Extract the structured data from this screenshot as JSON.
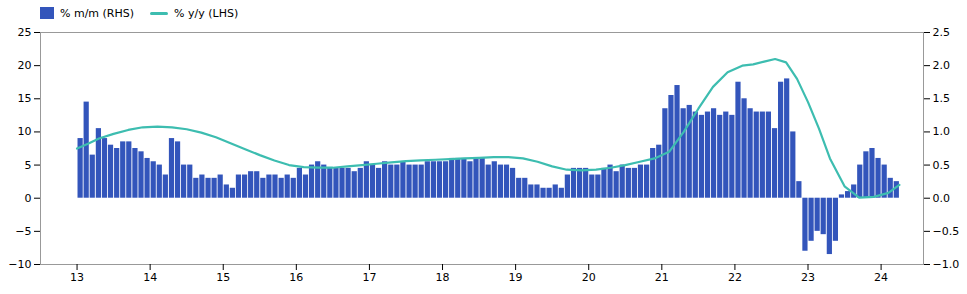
{
  "chart_data": {
    "type": "bar",
    "legend": "upper left",
    "grid": false,
    "xlim": [
      12.5,
      24.58
    ],
    "xticks": [
      13,
      14,
      15,
      16,
      17,
      18,
      19,
      20,
      21,
      22,
      23,
      24
    ],
    "ylim": [
      -10,
      25
    ],
    "yticks": [
      -10,
      -5,
      0,
      5,
      10,
      15,
      20,
      25
    ],
    "y2lim": [
      -1.0,
      2.5
    ],
    "y2ticks": [
      {
        "value": -1.0,
        "label": "−1.0"
      },
      {
        "value": -0.5,
        "label": "−0.5"
      },
      {
        "value": 0.0,
        "label": "0.0"
      },
      {
        "value": 0.5,
        "label": "0.5"
      },
      {
        "value": 1.0,
        "label": "1.0"
      },
      {
        "value": 1.5,
        "label": "1.5"
      },
      {
        "value": 2.0,
        "label": "2.0"
      },
      {
        "value": 2.5,
        "label": "2.5"
      }
    ],
    "series": [
      {
        "name": "% m/m (RHS)",
        "type": "bar",
        "color": "#3355bb",
        "x": [
          13.042,
          13.125,
          13.208,
          13.292,
          13.375,
          13.458,
          13.542,
          13.625,
          13.708,
          13.792,
          13.875,
          13.958,
          14.042,
          14.125,
          14.208,
          14.292,
          14.375,
          14.458,
          14.542,
          14.625,
          14.708,
          14.792,
          14.875,
          14.958,
          15.042,
          15.125,
          15.208,
          15.292,
          15.375,
          15.458,
          15.542,
          15.625,
          15.708,
          15.792,
          15.875,
          15.958,
          16.042,
          16.125,
          16.208,
          16.292,
          16.375,
          16.458,
          16.542,
          16.625,
          16.708,
          16.792,
          16.875,
          16.958,
          17.042,
          17.125,
          17.208,
          17.292,
          17.375,
          17.458,
          17.542,
          17.625,
          17.708,
          17.792,
          17.875,
          17.958,
          18.042,
          18.125,
          18.208,
          18.292,
          18.375,
          18.458,
          18.542,
          18.625,
          18.708,
          18.792,
          18.875,
          18.958,
          19.042,
          19.125,
          19.208,
          19.292,
          19.375,
          19.458,
          19.542,
          19.625,
          19.708,
          19.792,
          19.875,
          19.958,
          20.042,
          20.125,
          20.208,
          20.292,
          20.375,
          20.458,
          20.542,
          20.625,
          20.708,
          20.792,
          20.875,
          20.958,
          21.042,
          21.125,
          21.208,
          21.292,
          21.375,
          21.458,
          21.542,
          21.625,
          21.708,
          21.792,
          21.875,
          21.958,
          22.042,
          22.125,
          22.208,
          22.292,
          22.375,
          22.458,
          22.542,
          22.625,
          22.708,
          22.792,
          22.875,
          22.958,
          23.042,
          23.125,
          23.208,
          23.292,
          23.375,
          23.458,
          23.542,
          23.625,
          23.708,
          23.792,
          23.875,
          23.958,
          24.042,
          24.125,
          24.208
        ],
        "values": [
          9.0,
          14.5,
          6.5,
          10.5,
          9.0,
          8.0,
          7.5,
          8.5,
          8.5,
          7.5,
          7.0,
          6.0,
          5.5,
          5.0,
          3.5,
          9.0,
          8.5,
          5.0,
          5.0,
          3.0,
          3.5,
          3.0,
          3.0,
          3.5,
          2.0,
          1.5,
          3.5,
          3.5,
          4.0,
          4.0,
          3.0,
          3.5,
          3.5,
          3.0,
          3.5,
          3.0,
          4.5,
          3.5,
          5.0,
          5.5,
          5.0,
          4.5,
          4.5,
          4.5,
          4.5,
          4.0,
          4.5,
          5.5,
          5.0,
          4.5,
          5.5,
          5.0,
          5.0,
          5.5,
          5.0,
          5.0,
          5.0,
          5.5,
          5.5,
          5.5,
          5.5,
          6.0,
          6.0,
          6.0,
          5.5,
          6.0,
          6.0,
          5.0,
          5.5,
          5.0,
          5.0,
          4.5,
          3.0,
          3.0,
          2.0,
          2.0,
          1.5,
          1.5,
          2.0,
          1.5,
          3.5,
          4.5,
          4.5,
          4.5,
          3.5,
          3.5,
          4.5,
          5.0,
          4.0,
          5.0,
          4.5,
          4.5,
          5.0,
          5.0,
          7.5,
          8.0,
          13.5,
          15.5,
          17.0,
          13.5,
          14.0,
          13.0,
          12.5,
          13.0,
          13.5,
          12.5,
          13.0,
          12.5,
          17.5,
          15.0,
          13.5,
          13.0,
          13.0,
          13.0,
          10.5,
          17.5,
          18.0,
          10.0,
          2.5,
          -8.0,
          -6.5,
          -5.0,
          -5.5,
          -8.5,
          -6.5,
          0.5,
          1.0,
          2.0,
          5.0,
          7.0,
          7.5,
          6.0,
          5.0,
          3.0,
          2.5
        ]
      },
      {
        "name": "% y/y (LHS)",
        "type": "line",
        "color": "#3dbdb0",
        "axis": "y2",
        "x": [
          13.0,
          13.15,
          13.3,
          13.5,
          13.7,
          13.9,
          14.1,
          14.3,
          14.5,
          14.7,
          14.9,
          15.1,
          15.3,
          15.5,
          15.7,
          15.9,
          16.1,
          16.3,
          16.5,
          16.7,
          16.9,
          17.1,
          17.3,
          17.5,
          17.7,
          17.9,
          18.1,
          18.3,
          18.5,
          18.7,
          18.9,
          19.1,
          19.3,
          19.5,
          19.7,
          19.9,
          20.1,
          20.3,
          20.5,
          20.7,
          20.9,
          21.1,
          21.3,
          21.5,
          21.7,
          21.9,
          22.1,
          22.25,
          22.4,
          22.55,
          22.7,
          22.85,
          23.0,
          23.15,
          23.3,
          23.5,
          23.7,
          23.9,
          24.1,
          24.25
        ],
        "values": [
          0.75,
          0.82,
          0.9,
          0.97,
          1.03,
          1.07,
          1.08,
          1.07,
          1.04,
          0.99,
          0.92,
          0.83,
          0.74,
          0.65,
          0.57,
          0.5,
          0.47,
          0.46,
          0.46,
          0.48,
          0.5,
          0.52,
          0.54,
          0.56,
          0.57,
          0.58,
          0.59,
          0.6,
          0.61,
          0.62,
          0.62,
          0.6,
          0.55,
          0.48,
          0.43,
          0.42,
          0.43,
          0.46,
          0.5,
          0.55,
          0.6,
          0.7,
          1.0,
          1.35,
          1.68,
          1.9,
          2.0,
          2.02,
          2.06,
          2.1,
          2.05,
          1.8,
          1.45,
          1.05,
          0.6,
          0.18,
          0.01,
          0.02,
          0.08,
          0.2
        ]
      }
    ]
  }
}
